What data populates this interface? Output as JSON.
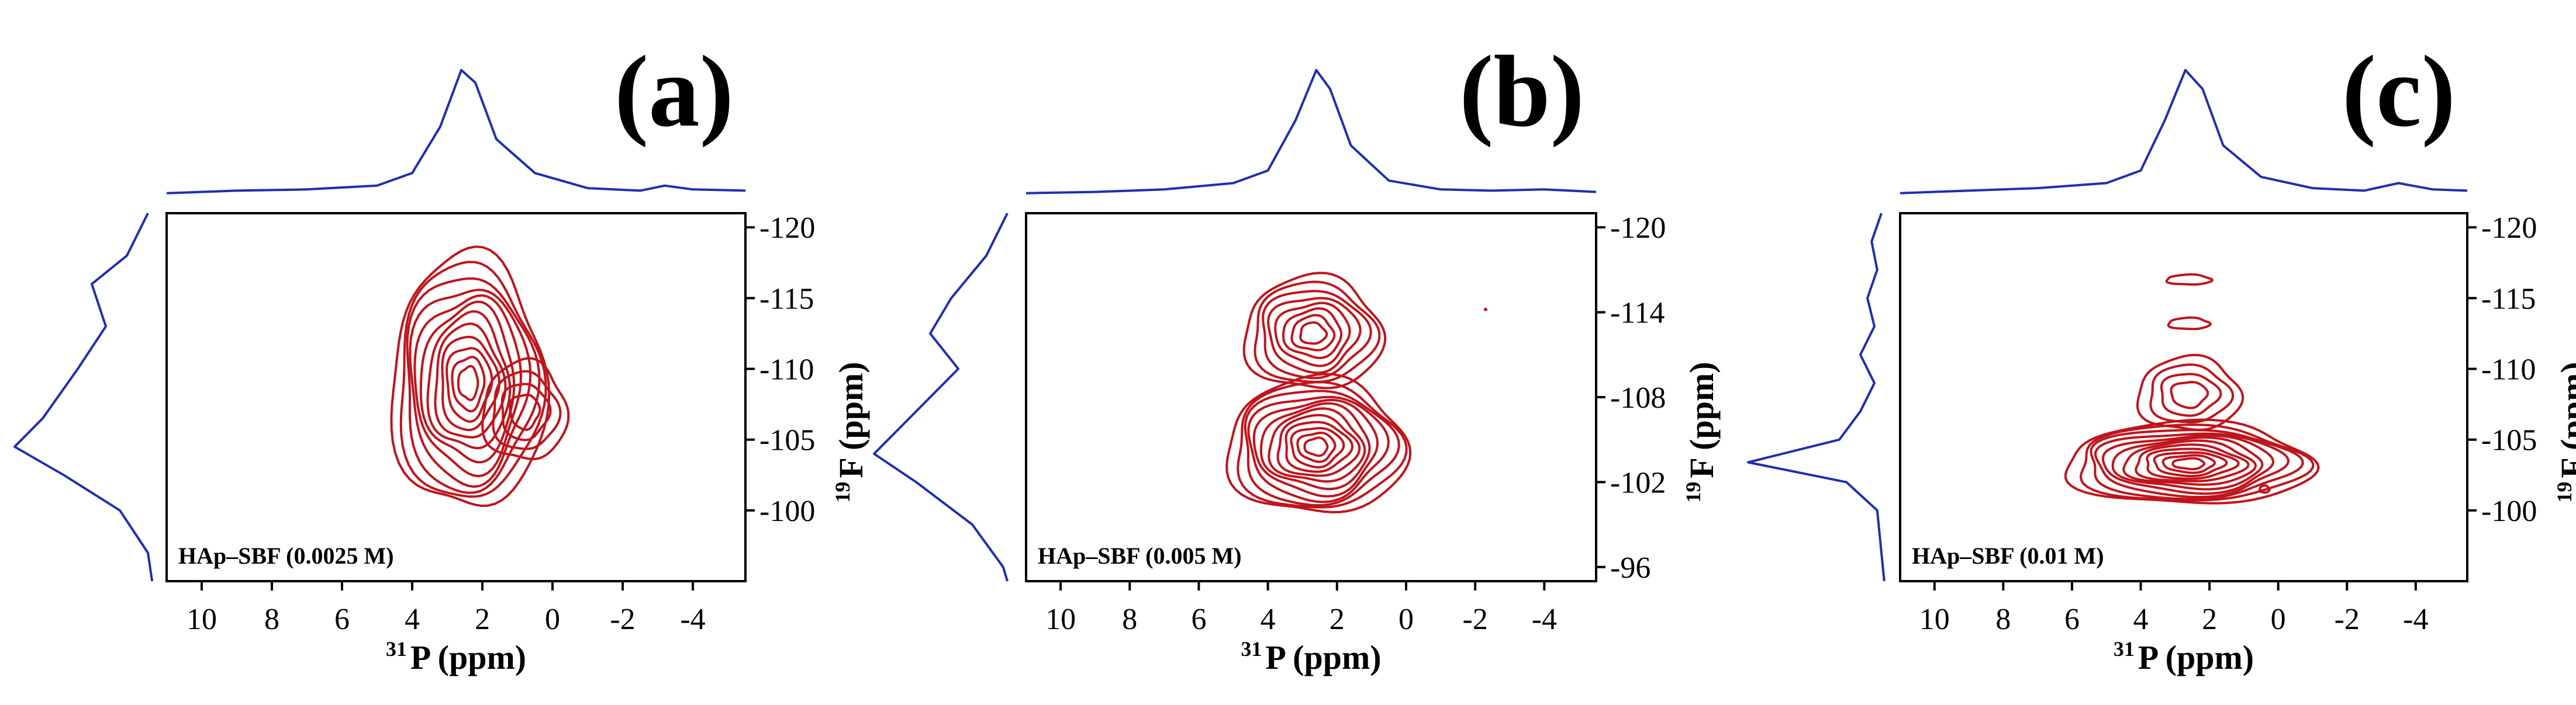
{
  "chart_data": [
    {
      "type": "contour",
      "panel_label": "(a)",
      "sample_label": "HAp–SBF (0.0025 M)",
      "xlabel_sup": "31",
      "xlabel": "P (ppm)",
      "ylabel_sup": "19",
      "ylabel": "F (ppm)",
      "xlim": [
        11,
        -5.5
      ],
      "ylim": [
        -95,
        -121
      ],
      "xticks": [
        10,
        8,
        6,
        4,
        2,
        0,
        -2,
        -4
      ],
      "yticks": [
        -120,
        -115,
        -110,
        -105,
        -100
      ],
      "ytick_labels": [
        "-120",
        "-115",
        "-110",
        "-105",
        "-100"
      ],
      "line_color": "#c0141c",
      "projection_color": "#1f2fb0",
      "contour_groups": [
        {
          "cx": 2.4,
          "cy": -109,
          "hw": 2.2,
          "hh": 9.0,
          "levels": 12
        },
        {
          "cx": 0.8,
          "cy": -107,
          "hw": 1.2,
          "hh": 3.5,
          "levels": 4
        }
      ],
      "projection_top": {
        "x": [
          11,
          9,
          7,
          5,
          4,
          3.2,
          2.6,
          2.2,
          1.6,
          0.5,
          -1,
          -2.5,
          -3.2,
          -4,
          -5.5
        ],
        "y": [
          0.02,
          0.04,
          0.05,
          0.08,
          0.18,
          0.55,
          1.0,
          0.9,
          0.45,
          0.18,
          0.06,
          0.04,
          0.08,
          0.05,
          0.04
        ]
      },
      "projection_left": {
        "y": [
          -121,
          -118,
          -116,
          -113,
          -110,
          -106.5,
          -104.5,
          -102.5,
          -100,
          -97,
          -95
        ],
        "v": [
          0.05,
          0.2,
          0.45,
          0.35,
          0.55,
          0.8,
          1.0,
          0.65,
          0.25,
          0.05,
          0.02
        ]
      }
    },
    {
      "type": "contour",
      "panel_label": "(b)",
      "sample_label": "HAp–SBF (0.005 M)",
      "xlabel_sup": "31",
      "xlabel": "P (ppm)",
      "ylabel_sup": "19",
      "ylabel": "F (ppm)",
      "xlim": [
        11,
        -5.5
      ],
      "ylim": [
        -95,
        -121
      ],
      "xticks": [
        10,
        8,
        6,
        4,
        2,
        0,
        -2,
        -4
      ],
      "yticks": [
        -120,
        -114,
        -108,
        -102,
        -96
      ],
      "ytick_labels": [
        "-120",
        "-114",
        "-108",
        "-102",
        "-96"
      ],
      "line_color": "#c0141c",
      "projection_color": "#1f2fb0",
      "contour_groups": [
        {
          "cx": 2.6,
          "cy": -104.5,
          "hw": 2.6,
          "hh": 4.8,
          "levels": 12
        },
        {
          "cx": 2.7,
          "cy": -112.5,
          "hw": 2.0,
          "hh": 4.0,
          "levels": 8
        }
      ],
      "projection_top": {
        "x": [
          11,
          9,
          7,
          5,
          4,
          3.2,
          2.6,
          2.2,
          1.6,
          0.5,
          -1,
          -2.5,
          -4,
          -5.5
        ],
        "y": [
          0.02,
          0.03,
          0.05,
          0.1,
          0.2,
          0.6,
          1.0,
          0.85,
          0.4,
          0.12,
          0.05,
          0.04,
          0.05,
          0.03
        ]
      },
      "projection_left": {
        "y": [
          -121,
          -118,
          -115,
          -112.5,
          -110,
          -106,
          -104,
          -102,
          -99,
          -96,
          -95
        ],
        "v": [
          0.05,
          0.2,
          0.45,
          0.6,
          0.4,
          0.8,
          1.0,
          0.7,
          0.3,
          0.08,
          0.05
        ]
      },
      "specks": [
        {
          "x": -2.3,
          "y": -114.2,
          "r": 3
        }
      ]
    },
    {
      "type": "contour",
      "panel_label": "(c)",
      "sample_label": "HAp–SBF (0.01 M)",
      "xlabel_sup": "31",
      "xlabel": "P (ppm)",
      "ylabel_sup": "19",
      "ylabel": "F (ppm)",
      "xlim": [
        11,
        -5.5
      ],
      "ylim": [
        -95,
        -121
      ],
      "xticks": [
        10,
        8,
        6,
        4,
        2,
        0,
        -2,
        -4
      ],
      "yticks": [
        -120,
        -115,
        -110,
        -105,
        -100
      ],
      "ytick_labels": [
        "-120",
        "-115",
        "-110",
        "-105",
        "-100"
      ],
      "line_color": "#c0141c",
      "projection_color": "#1f2fb0",
      "contour_groups": [
        {
          "cx": 2.6,
          "cy": -103.3,
          "hw": 3.6,
          "hh": 2.9,
          "levels": 12
        },
        {
          "cx": 2.6,
          "cy": -108.2,
          "hw": 1.5,
          "hh": 2.6,
          "levels": 4
        },
        {
          "cx": 2.6,
          "cy": -116.3,
          "hw": 0.65,
          "hh": 0.35,
          "levels": 1
        },
        {
          "cx": 2.6,
          "cy": -113.2,
          "hw": 0.6,
          "hh": 0.4,
          "levels": 1
        },
        {
          "cx": 0.4,
          "cy": -101.5,
          "hw": 0.14,
          "hh": 0.25,
          "levels": 1
        }
      ],
      "projection_top": {
        "x": [
          11,
          9,
          7,
          5,
          4,
          3.3,
          2.7,
          2.2,
          1.6,
          0.5,
          -1,
          -2.5,
          -3.5,
          -4.5,
          -5.5
        ],
        "y": [
          0.02,
          0.04,
          0.06,
          0.1,
          0.2,
          0.6,
          1.0,
          0.85,
          0.4,
          0.15,
          0.06,
          0.04,
          0.1,
          0.05,
          0.04
        ]
      },
      "projection_left": {
        "y": [
          -121,
          -119,
          -117,
          -115,
          -113,
          -111,
          -109,
          -107,
          -105,
          -103.4,
          -102,
          -100,
          -97,
          -95
        ],
        "v": [
          0.05,
          0.12,
          0.08,
          0.15,
          0.1,
          0.2,
          0.1,
          0.2,
          0.35,
          1.0,
          0.3,
          0.08,
          0.05,
          0.03
        ]
      }
    }
  ]
}
